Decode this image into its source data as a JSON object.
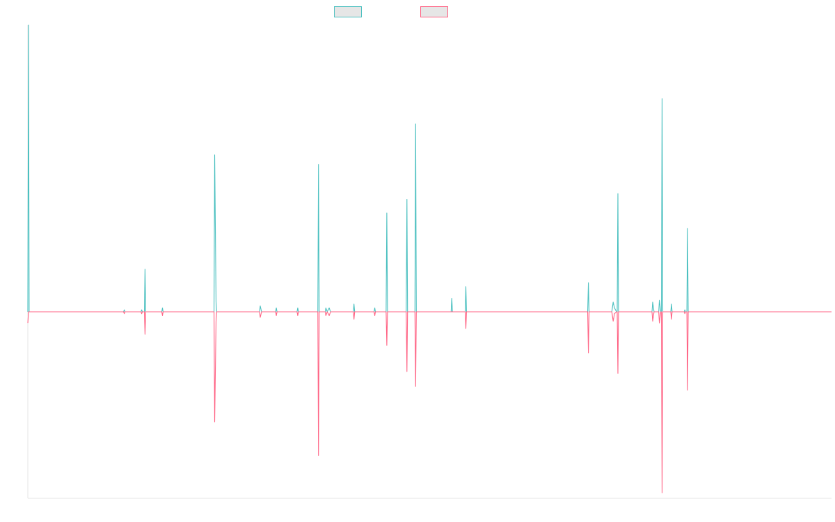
{
  "chart_data": {
    "type": "line",
    "title": "",
    "xlabel": "",
    "ylabel": "",
    "grid": false,
    "legend": "top-center",
    "ylim": [
      -1.0,
      1.45
    ],
    "xlim": [
      0,
      1200
    ],
    "series": [
      {
        "color": "#4bc0c0",
        "baseline": 0,
        "points": [
          [
            0,
            0.0
          ],
          [
            1,
            1.48
          ],
          [
            2,
            0.0
          ],
          [
            143,
            0.0
          ],
          [
            144,
            0.01
          ],
          [
            145,
            0.0
          ],
          [
            169,
            0.0
          ],
          [
            170,
            0.01
          ],
          [
            171,
            0.0
          ],
          [
            174,
            0.0
          ],
          [
            175,
            0.22
          ],
          [
            176,
            0.0
          ],
          [
            200,
            0.0
          ],
          [
            201,
            0.02
          ],
          [
            202,
            0.0
          ],
          [
            278,
            0.0
          ],
          [
            279,
            0.81
          ],
          [
            281,
            0.05
          ],
          [
            282,
            0.0
          ],
          [
            346,
            0.0
          ],
          [
            347,
            0.03
          ],
          [
            349,
            0.0
          ],
          [
            351,
            0.0
          ],
          [
            370,
            0.0
          ],
          [
            371,
            0.02
          ],
          [
            372,
            0.0
          ],
          [
            402,
            0.0
          ],
          [
            403,
            0.02
          ],
          [
            404,
            0.0
          ],
          [
            433,
            0.0
          ],
          [
            434,
            0.76
          ],
          [
            435,
            0.0
          ],
          [
            444,
            0.0
          ],
          [
            445,
            0.02
          ],
          [
            447,
            0.0
          ],
          [
            450,
            0.02
          ],
          [
            452,
            0.0
          ],
          [
            486,
            0.0
          ],
          [
            487,
            0.04
          ],
          [
            488,
            0.0
          ],
          [
            517,
            0.0
          ],
          [
            518,
            0.02
          ],
          [
            519,
            0.0
          ],
          [
            535,
            0.0
          ],
          [
            536,
            0.51
          ],
          [
            537,
            0.0
          ],
          [
            565,
            0.0
          ],
          [
            566,
            0.58
          ],
          [
            567,
            0.0
          ],
          [
            578,
            0.0
          ],
          [
            579,
            0.97
          ],
          [
            580,
            0.0
          ],
          [
            632,
            0.0
          ],
          [
            633,
            0.07
          ],
          [
            634,
            0.0
          ],
          [
            653,
            0.0
          ],
          [
            654,
            0.13
          ],
          [
            655,
            0.0
          ],
          [
            836,
            0.0
          ],
          [
            837,
            0.15
          ],
          [
            838,
            0.0
          ],
          [
            872,
            0.0
          ],
          [
            874,
            0.05
          ],
          [
            876,
            0.02
          ],
          [
            879,
            0.0
          ],
          [
            880,
            0.0
          ],
          [
            881,
            0.61
          ],
          [
            882,
            0.0
          ],
          [
            932,
            0.0
          ],
          [
            933,
            0.05
          ],
          [
            935,
            0.0
          ],
          [
            942,
            0.0
          ],
          [
            943,
            0.06
          ],
          [
            945,
            0.0
          ],
          [
            946,
            0.0
          ],
          [
            947,
            1.1
          ],
          [
            948,
            0.0
          ],
          [
            960,
            0.0
          ],
          [
            961,
            0.04
          ],
          [
            962,
            0.0
          ],
          [
            980,
            0.0
          ],
          [
            981,
            0.01
          ],
          [
            982,
            0.0
          ],
          [
            984,
            0.0
          ],
          [
            985,
            0.43
          ],
          [
            986,
            0.0
          ],
          [
            1200,
            0.0
          ]
        ]
      },
      {
        "color": "#ff6384",
        "baseline": 0,
        "points": [
          [
            0,
            -0.06
          ],
          [
            1,
            0.0
          ],
          [
            2,
            0.0
          ],
          [
            143,
            0.0
          ],
          [
            144,
            -0.01
          ],
          [
            145,
            0.0
          ],
          [
            169,
            0.0
          ],
          [
            170,
            -0.01
          ],
          [
            171,
            0.0
          ],
          [
            174,
            0.0
          ],
          [
            175,
            -0.12
          ],
          [
            176,
            0.0
          ],
          [
            200,
            0.0
          ],
          [
            201,
            -0.02
          ],
          [
            202,
            0.0
          ],
          [
            278,
            0.0
          ],
          [
            279,
            -0.59
          ],
          [
            281,
            -0.05
          ],
          [
            282,
            0.0
          ],
          [
            346,
            0.0
          ],
          [
            347,
            -0.03
          ],
          [
            349,
            0.0
          ],
          [
            351,
            0.0
          ],
          [
            370,
            0.0
          ],
          [
            371,
            -0.02
          ],
          [
            372,
            0.0
          ],
          [
            402,
            0.0
          ],
          [
            403,
            -0.02
          ],
          [
            404,
            0.0
          ],
          [
            433,
            0.0
          ],
          [
            434,
            -0.77
          ],
          [
            435,
            0.0
          ],
          [
            444,
            0.0
          ],
          [
            445,
            -0.02
          ],
          [
            447,
            0.0
          ],
          [
            450,
            -0.02
          ],
          [
            452,
            0.0
          ],
          [
            486,
            0.0
          ],
          [
            487,
            -0.04
          ],
          [
            488,
            0.0
          ],
          [
            517,
            0.0
          ],
          [
            518,
            -0.02
          ],
          [
            519,
            0.0
          ],
          [
            535,
            0.0
          ],
          [
            536,
            -0.18
          ],
          [
            537,
            0.0
          ],
          [
            565,
            0.0
          ],
          [
            566,
            -0.32
          ],
          [
            567,
            0.0
          ],
          [
            578,
            0.0
          ],
          [
            579,
            -0.4
          ],
          [
            580,
            0.0
          ],
          [
            632,
            0.0
          ],
          [
            633,
            0.0
          ],
          [
            634,
            0.0
          ],
          [
            653,
            0.0
          ],
          [
            654,
            -0.09
          ],
          [
            655,
            0.0
          ],
          [
            836,
            0.0
          ],
          [
            837,
            -0.22
          ],
          [
            838,
            0.0
          ],
          [
            872,
            0.0
          ],
          [
            874,
            -0.05
          ],
          [
            876,
            -0.01
          ],
          [
            879,
            0.0
          ],
          [
            880,
            0.0
          ],
          [
            881,
            -0.33
          ],
          [
            882,
            0.0
          ],
          [
            932,
            0.0
          ],
          [
            933,
            -0.05
          ],
          [
            935,
            0.0
          ],
          [
            942,
            0.0
          ],
          [
            943,
            -0.06
          ],
          [
            945,
            0.0
          ],
          [
            946,
            0.0
          ],
          [
            947,
            -0.97
          ],
          [
            948,
            0.0
          ],
          [
            960,
            0.0
          ],
          [
            961,
            -0.04
          ],
          [
            962,
            0.0
          ],
          [
            980,
            0.0
          ],
          [
            981,
            -0.01
          ],
          [
            982,
            0.0
          ],
          [
            984,
            0.0
          ],
          [
            985,
            -0.42
          ],
          [
            986,
            0.0
          ],
          [
            1200,
            0.0
          ]
        ]
      }
    ]
  }
}
